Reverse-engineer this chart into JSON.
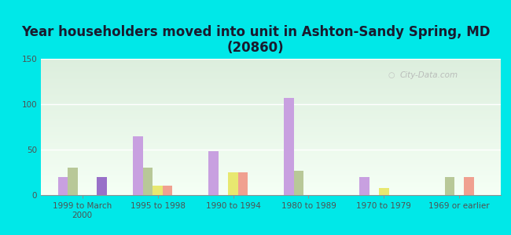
{
  "title": "Year householders moved into unit in Ashton-Sandy Spring, MD\n(20860)",
  "categories": [
    "1999 to March\n2000",
    "1995 to 1998",
    "1990 to 1994",
    "1980 to 1989",
    "1970 to 1979",
    "1969 or earlier"
  ],
  "series": {
    "White Non-Hispanic": [
      20,
      65,
      48,
      107,
      20,
      0
    ],
    "Black": [
      30,
      30,
      0,
      27,
      0,
      20
    ],
    "Asian": [
      0,
      10,
      25,
      0,
      8,
      0
    ],
    "Two or More Races": [
      0,
      10,
      25,
      0,
      0,
      20
    ],
    "Hispanic or Latino": [
      20,
      0,
      0,
      0,
      0,
      0
    ]
  },
  "colors": {
    "White Non-Hispanic": "#c8a0e0",
    "Black": "#b8c898",
    "Asian": "#e8e870",
    "Two or More Races": "#f0a090",
    "Hispanic or Latino": "#9870c8"
  },
  "ylim": [
    0,
    150
  ],
  "yticks": [
    0,
    50,
    100,
    150
  ],
  "background_color": "#00e8e8",
  "plot_bg_top": "#dceedd",
  "plot_bg_bottom": "#f5fff5",
  "title_fontsize": 12,
  "tick_fontsize": 7.5,
  "legend_fontsize": 8,
  "bar_width": 0.13,
  "watermark": "City-Data.com"
}
